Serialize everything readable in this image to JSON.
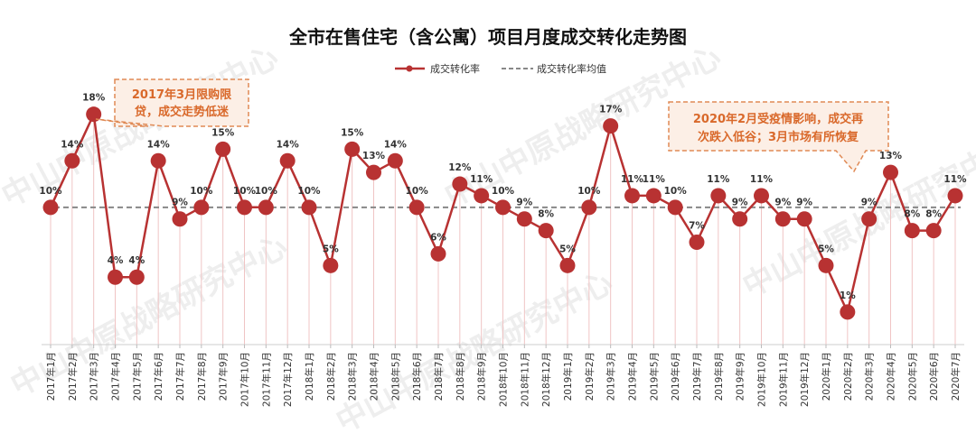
{
  "chart_data": {
    "type": "line",
    "title": "全市在售住宅（含公寓）项目月度成交转化走势图",
    "legend": [
      "成交转化率",
      "成交转化率均值"
    ],
    "legend_position": "top-right",
    "grid": false,
    "categories": [
      "2017年1月",
      "2017年2月",
      "2017年3月",
      "2017年4月",
      "2017年5月",
      "2017年6月",
      "2017年7月",
      "2017年8月",
      "2017年9月",
      "2017年10月",
      "2017年11月",
      "2017年12月",
      "2018年1月",
      "2018年2月",
      "2018年3月",
      "2018年4月",
      "2018年5月",
      "2018年6月",
      "2018年7月",
      "2018年8月",
      "2018年9月",
      "2018年10月",
      "2018年11月",
      "2018年12月",
      "2019年1月",
      "2019年2月",
      "2019年3月",
      "2019年4月",
      "2019年5月",
      "2019年6月",
      "2019年7月",
      "2019年8月",
      "2019年9月",
      "2019年10月",
      "2019年11月",
      "2019年12月",
      "2020年1月",
      "2020年2月",
      "2020年3月",
      "2020年4月",
      "2020年5月",
      "2020年6月",
      "2020年7月"
    ],
    "series": [
      {
        "name": "成交转化率",
        "color": "#b83232",
        "values": [
          10,
          14,
          18,
          4,
          4,
          14,
          9,
          10,
          15,
          10,
          10,
          14,
          10,
          5,
          15,
          13,
          14,
          10,
          6,
          12,
          11,
          10,
          9,
          8,
          5,
          10,
          17,
          11,
          11,
          10,
          7,
          11,
          9,
          11,
          9,
          9,
          5,
          1,
          9,
          13,
          8,
          8,
          11
        ],
        "labels": [
          "10%",
          "14%",
          "18%",
          "4%",
          "4%",
          "14%",
          "9%",
          "10%",
          "15%",
          "10%",
          "10%",
          "14%",
          "10%",
          "5%",
          "15%",
          "13%",
          "14%",
          "10%",
          "6%",
          "12%",
          "11%",
          "10%",
          "9%",
          "8%",
          "5%",
          "10%",
          "17%",
          "11%",
          "11%",
          "10%",
          "7%",
          "11%",
          "9%",
          "11%",
          "9%",
          "9%",
          "5%",
          "1%",
          "9%",
          "13%",
          "8%",
          "8%",
          "11%"
        ]
      },
      {
        "name": "成交转化率均值",
        "color": "#888888",
        "value": 10
      }
    ],
    "ylim": [
      -1.8,
      21
    ],
    "annotations": [
      {
        "lines": [
          "2017年3月限购限",
          "贷，成交走势低迷"
        ],
        "ref": "2017年3月"
      },
      {
        "lines": [
          "2020年2月受疫情影响，成交再",
          "次跌入低谷；3月市场有所恢复"
        ],
        "ref": "2020年2月"
      }
    ],
    "watermark": "中山中原战略研究中心",
    "colors": {
      "line": "#b83232",
      "marker": "#b83232",
      "mean": "#888888",
      "callout": "#e08a55",
      "callout_fill": "#fcefe6",
      "dropline": "#f0c4c4"
    }
  }
}
